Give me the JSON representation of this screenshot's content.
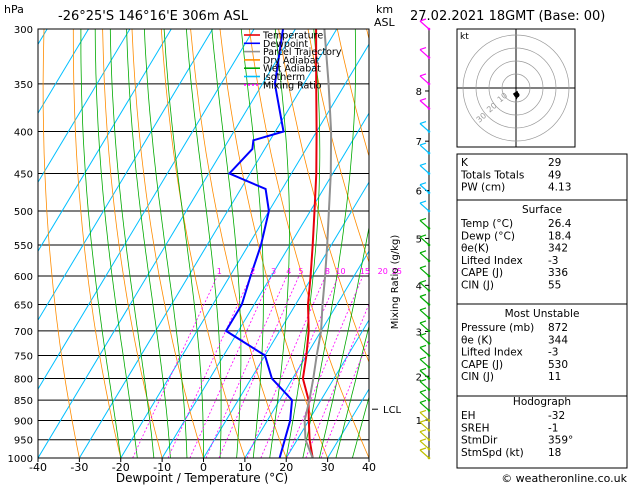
{
  "header": {
    "hpa_label": "hPa",
    "location": "-26°25'S  146°16'E  306m  ASL",
    "km_label": "km",
    "asl_label": "ASL",
    "datetime": "27.02.2021  18GMT  (Base: 00)"
  },
  "legend": {
    "items": [
      {
        "label": "Temperature",
        "color": "#e8000b"
      },
      {
        "label": "Dewpoint",
        "color": "#0000ff"
      },
      {
        "label": "Parcel Trajectory",
        "color": "#909090"
      },
      {
        "label": "Dry Adiabat",
        "color": "#ff8c00"
      },
      {
        "label": "Wet Adiabat",
        "color": "#00aa00"
      },
      {
        "label": "Isotherm",
        "color": "#00bfff"
      },
      {
        "label": "Mixing Ratio",
        "color": "#ff00ff"
      }
    ]
  },
  "chart_data": {
    "type": "line",
    "title": "-26°25'S  146°16'E  306m  ASL",
    "xlabel": "Dewpoint / Temperature (°C)",
    "ylabel": "hPa",
    "xlim": [
      -40,
      40
    ],
    "ylim": [
      1000,
      300
    ],
    "y_scale": "log",
    "skew": true,
    "grid": true,
    "x_ticks": [
      "-40",
      "-30",
      "-20",
      "-10",
      "0",
      "10",
      "20",
      "30",
      "40"
    ],
    "pressure_ticks": [
      "300",
      "350",
      "400",
      "450",
      "500",
      "550",
      "600",
      "650",
      "700",
      "750",
      "800",
      "850",
      "900",
      "950",
      "1000"
    ],
    "km_ticks": [
      {
        "label": "8",
        "p": 357
      },
      {
        "label": "7",
        "p": 411
      },
      {
        "label": "6",
        "p": 472
      },
      {
        "label": "5",
        "p": 540
      },
      {
        "label": "4",
        "p": 616
      },
      {
        "label": "3",
        "p": 701
      },
      {
        "label": "2",
        "p": 795
      },
      {
        "label": "1",
        "p": 899
      }
    ],
    "mixing_ratio_axis_label": "Mixing Ratio (g/kg)",
    "mixing_ratio_labels": [
      "1",
      "2",
      "3",
      "4",
      "5",
      "8",
      "10",
      "15",
      "20",
      "25"
    ],
    "lcl": {
      "label": "LCL",
      "p": 872
    },
    "series": [
      {
        "name": "Temperature",
        "color": "#e8000b",
        "points": [
          [
            1000,
            26.4
          ],
          [
            950,
            23
          ],
          [
            900,
            20
          ],
          [
            850,
            17
          ],
          [
            800,
            12.5
          ],
          [
            750,
            10
          ],
          [
            700,
            7
          ],
          [
            650,
            3
          ],
          [
            600,
            -0.5
          ],
          [
            550,
            -4.5
          ],
          [
            500,
            -9
          ],
          [
            450,
            -14
          ],
          [
            400,
            -20
          ],
          [
            350,
            -27
          ],
          [
            300,
            -35
          ]
        ]
      },
      {
        "name": "Dewpoint",
        "color": "#0000ff",
        "points": [
          [
            1000,
            18.4
          ],
          [
            950,
            17
          ],
          [
            900,
            15.5
          ],
          [
            850,
            13
          ],
          [
            800,
            5
          ],
          [
            750,
            0
          ],
          [
            700,
            -13
          ],
          [
            650,
            -13
          ],
          [
            600,
            -15
          ],
          [
            550,
            -17
          ],
          [
            500,
            -20
          ],
          [
            470,
            -24
          ],
          [
            450,
            -35
          ],
          [
            420,
            -33
          ],
          [
            410,
            -34
          ],
          [
            400,
            -28
          ],
          [
            350,
            -37
          ],
          [
            300,
            -43
          ]
        ]
      },
      {
        "name": "Parcel Trajectory",
        "color": "#909090",
        "points": [
          [
            1000,
            26.4
          ],
          [
            950,
            22
          ],
          [
            900,
            19
          ],
          [
            872,
            18
          ],
          [
            850,
            17.2
          ],
          [
            800,
            15
          ],
          [
            750,
            12.5
          ],
          [
            700,
            10
          ],
          [
            650,
            6.5
          ],
          [
            600,
            3
          ],
          [
            550,
            -1
          ],
          [
            500,
            -5.5
          ],
          [
            450,
            -10.5
          ],
          [
            400,
            -16.5
          ],
          [
            350,
            -24
          ],
          [
            300,
            -33
          ]
        ]
      }
    ],
    "hodograph": {
      "label": "kt",
      "ring_labels": [
        "10",
        "20",
        "30"
      ]
    },
    "wind_profile_colors": [
      "#ff00ff",
      "#00bfff",
      "#00aa00",
      "#bfbf00"
    ]
  },
  "stats": {
    "table1": [
      {
        "label": "K",
        "value": "29"
      },
      {
        "label": "Totals Totals",
        "value": "49"
      },
      {
        "label": "PW (cm)",
        "value": "4.13"
      }
    ],
    "surface": {
      "title": "Surface",
      "rows": [
        {
          "label": "Temp (°C)",
          "value": "26.4"
        },
        {
          "label": "Dewp (°C)",
          "value": "18.4"
        },
        {
          "label": "θe(K)",
          "value": "342"
        },
        {
          "label": "Lifted Index",
          "value": "-3"
        },
        {
          "label": "CAPE (J)",
          "value": "336"
        },
        {
          "label": "CIN (J)",
          "value": "55"
        }
      ]
    },
    "most_unstable": {
      "title": "Most Unstable",
      "rows": [
        {
          "label": "Pressure (mb)",
          "value": "872"
        },
        {
          "label": "θe (K)",
          "value": "344"
        },
        {
          "label": "Lifted Index",
          "value": "-3"
        },
        {
          "label": "CAPE (J)",
          "value": "530"
        },
        {
          "label": "CIN (J)",
          "value": "11"
        }
      ]
    },
    "hodograph": {
      "title": "Hodograph",
      "rows": [
        {
          "label": "EH",
          "value": "-32"
        },
        {
          "label": "SREH",
          "value": "-1"
        },
        {
          "label": "StmDir",
          "value": "359°"
        },
        {
          "label": "StmSpd (kt)",
          "value": "18"
        }
      ]
    }
  },
  "footer": {
    "copyright": "© weatheronline.co.uk"
  }
}
